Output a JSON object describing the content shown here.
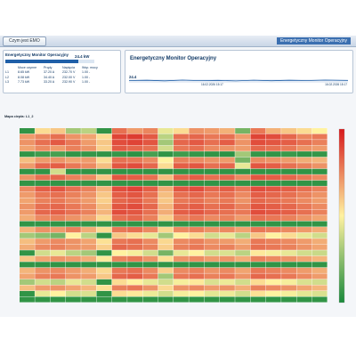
{
  "app": {
    "tab_label": "Czym jest EMO",
    "header_title": "Energetyczny Monitor Operacyjny"
  },
  "summary": {
    "title": "Energetyczny Monitor Operacyjny",
    "total": "24.4 kW",
    "total_fraction": 0.82,
    "columns": [
      "",
      "Moce czynne",
      "Prądy",
      "Napięcia",
      "Wsp. mocy"
    ],
    "rows": [
      [
        "L1",
        "8.65 kW",
        "37.20 A",
        "232.70 V",
        "1.00 -"
      ],
      [
        "L2",
        "8.08 kW",
        "34.40 A",
        "232.00 V",
        "1.00 -"
      ],
      [
        "L3",
        "7.73 kW",
        "33.20 A",
        "232.90 V",
        "1.00 -"
      ]
    ]
  },
  "trend": {
    "title": "Energetyczny Monitor Operacyjny",
    "current_value": "24.4",
    "time_start": "16.02.2026 15:17",
    "time_end": "16.02.2026 15:17"
  },
  "heatmap_title": "Mapa ciepła: L1_2",
  "chart_data": {
    "type": "heatmap",
    "title": "Mapa ciepła: L1_2",
    "rows": 30,
    "columns": 20,
    "colormap": [
      "#1a8a3c",
      "#fff2a0",
      "#d7191c"
    ],
    "colorbar_range": [
      0,
      1
    ],
    "values": [
      [
        0.05,
        0.55,
        0.6,
        0.3,
        0.35,
        0.05,
        0.8,
        0.7,
        0.75,
        0.45,
        0.55,
        0.72,
        0.7,
        0.65,
        0.2,
        0.78,
        0.65,
        0.6,
        0.55,
        0.5
      ],
      [
        0.7,
        0.75,
        0.8,
        0.72,
        0.68,
        0.55,
        0.9,
        0.92,
        0.85,
        0.35,
        0.8,
        0.82,
        0.78,
        0.8,
        0.7,
        0.9,
        0.88,
        0.82,
        0.75,
        0.78
      ],
      [
        0.72,
        0.8,
        0.85,
        0.78,
        0.7,
        0.6,
        0.88,
        0.9,
        0.86,
        0.3,
        0.82,
        0.85,
        0.8,
        0.84,
        0.72,
        0.88,
        0.86,
        0.84,
        0.8,
        0.76
      ],
      [
        0.68,
        0.74,
        0.7,
        0.76,
        0.72,
        0.58,
        0.85,
        0.82,
        0.8,
        0.4,
        0.78,
        0.8,
        0.74,
        0.72,
        0.7,
        0.82,
        0.8,
        0.78,
        0.72,
        0.7
      ],
      [
        0.05,
        0.08,
        0.1,
        0.05,
        0.06,
        0.05,
        0.06,
        0.04,
        0.1,
        0.05,
        0.08,
        0.06,
        0.05,
        0.04,
        0.3,
        0.06,
        0.05,
        0.07,
        0.05,
        0.06
      ],
      [
        0.62,
        0.7,
        0.72,
        0.68,
        0.7,
        0.55,
        0.8,
        0.78,
        0.74,
        0.5,
        0.76,
        0.74,
        0.72,
        0.7,
        0.2,
        0.74,
        0.72,
        0.7,
        0.66,
        0.64
      ],
      [
        0.7,
        0.82,
        0.84,
        0.78,
        0.74,
        0.62,
        0.86,
        0.88,
        0.82,
        0.55,
        0.84,
        0.86,
        0.8,
        0.82,
        0.45,
        0.86,
        0.84,
        0.8,
        0.76,
        0.72
      ],
      [
        0.05,
        0.05,
        0.4,
        0.05,
        0.05,
        0.05,
        0.05,
        0.05,
        0.05,
        0.05,
        0.05,
        0.05,
        0.05,
        0.05,
        0.05,
        0.05,
        0.05,
        0.05,
        0.05,
        0.05
      ],
      [
        0.72,
        0.8,
        0.82,
        0.76,
        0.74,
        0.6,
        0.86,
        0.84,
        0.8,
        0.62,
        0.82,
        0.84,
        0.8,
        0.82,
        0.74,
        0.86,
        0.84,
        0.82,
        0.78,
        0.74
      ],
      [
        0.05,
        0.05,
        0.05,
        0.05,
        0.05,
        0.05,
        0.05,
        0.05,
        0.05,
        0.05,
        0.05,
        0.05,
        0.05,
        0.05,
        0.05,
        0.05,
        0.05,
        0.05,
        0.05,
        0.05
      ],
      [
        0.74,
        0.84,
        0.86,
        0.8,
        0.76,
        0.64,
        0.88,
        0.9,
        0.84,
        0.66,
        0.86,
        0.88,
        0.82,
        0.84,
        0.78,
        0.88,
        0.86,
        0.84,
        0.8,
        0.76
      ],
      [
        0.7,
        0.78,
        0.8,
        0.76,
        0.72,
        0.6,
        0.84,
        0.86,
        0.8,
        0.62,
        0.8,
        0.82,
        0.78,
        0.8,
        0.74,
        0.84,
        0.82,
        0.8,
        0.76,
        0.72
      ],
      [
        0.68,
        0.76,
        0.78,
        0.74,
        0.7,
        0.58,
        0.82,
        0.84,
        0.78,
        0.6,
        0.78,
        0.8,
        0.76,
        0.78,
        0.72,
        0.82,
        0.8,
        0.78,
        0.74,
        0.7
      ],
      [
        0.72,
        0.8,
        0.82,
        0.78,
        0.74,
        0.62,
        0.86,
        0.88,
        0.82,
        0.64,
        0.82,
        0.84,
        0.8,
        0.82,
        0.76,
        0.86,
        0.84,
        0.82,
        0.78,
        0.74
      ],
      [
        0.7,
        0.82,
        0.84,
        0.8,
        0.76,
        0.64,
        0.88,
        0.86,
        0.8,
        0.66,
        0.84,
        0.86,
        0.82,
        0.8,
        0.78,
        0.88,
        0.86,
        0.84,
        0.8,
        0.76
      ],
      [
        0.66,
        0.74,
        0.76,
        0.72,
        0.68,
        0.56,
        0.8,
        0.82,
        0.76,
        0.58,
        0.76,
        0.78,
        0.74,
        0.76,
        0.7,
        0.8,
        0.78,
        0.76,
        0.72,
        0.68
      ],
      [
        0.05,
        0.05,
        0.05,
        0.05,
        0.05,
        0.05,
        0.05,
        0.05,
        0.05,
        0.05,
        0.05,
        0.05,
        0.05,
        0.05,
        0.05,
        0.05,
        0.05,
        0.05,
        0.05,
        0.05
      ],
      [
        0.64,
        0.72,
        0.7,
        0.76,
        0.66,
        0.55,
        0.78,
        0.8,
        0.74,
        0.56,
        0.74,
        0.76,
        0.72,
        0.74,
        0.68,
        0.78,
        0.76,
        0.74,
        0.7,
        0.66
      ],
      [
        0.3,
        0.25,
        0.2,
        0.5,
        0.35,
        0.05,
        0.6,
        0.55,
        0.45,
        0.3,
        0.5,
        0.55,
        0.4,
        0.45,
        0.35,
        0.6,
        0.5,
        0.55,
        0.45,
        0.4
      ],
      [
        0.62,
        0.7,
        0.74,
        0.72,
        0.68,
        0.54,
        0.78,
        0.8,
        0.74,
        0.56,
        0.74,
        0.76,
        0.72,
        0.7,
        0.66,
        0.78,
        0.76,
        0.74,
        0.7,
        0.66
      ],
      [
        0.66,
        0.74,
        0.76,
        0.72,
        0.7,
        0.58,
        0.82,
        0.8,
        0.76,
        0.58,
        0.76,
        0.78,
        0.74,
        0.76,
        0.7,
        0.8,
        0.78,
        0.76,
        0.72,
        0.68
      ],
      [
        0.05,
        0.4,
        0.45,
        0.35,
        0.3,
        0.05,
        0.5,
        0.48,
        0.4,
        0.2,
        0.45,
        0.5,
        0.4,
        0.42,
        0.35,
        0.52,
        0.48,
        0.45,
        0.4,
        0.38
      ],
      [
        0.6,
        0.68,
        0.72,
        0.7,
        0.66,
        0.52,
        0.76,
        0.78,
        0.72,
        0.54,
        0.72,
        0.74,
        0.7,
        0.72,
        0.66,
        0.76,
        0.74,
        0.72,
        0.68,
        0.64
      ],
      [
        0.05,
        0.05,
        0.05,
        0.05,
        0.05,
        0.05,
        0.05,
        0.05,
        0.05,
        0.05,
        0.05,
        0.05,
        0.05,
        0.05,
        0.05,
        0.05,
        0.05,
        0.05,
        0.05,
        0.05
      ],
      [
        0.64,
        0.72,
        0.74,
        0.7,
        0.66,
        0.56,
        0.78,
        0.8,
        0.74,
        0.58,
        0.74,
        0.76,
        0.72,
        0.74,
        0.68,
        0.78,
        0.76,
        0.74,
        0.7,
        0.66
      ],
      [
        0.68,
        0.76,
        0.78,
        0.72,
        0.7,
        0.6,
        0.82,
        0.84,
        0.78,
        0.3,
        0.78,
        0.8,
        0.76,
        0.78,
        0.72,
        0.82,
        0.8,
        0.78,
        0.74,
        0.7
      ],
      [
        0.3,
        0.4,
        0.35,
        0.45,
        0.4,
        0.05,
        0.55,
        0.5,
        0.45,
        0.4,
        0.48,
        0.52,
        0.42,
        0.46,
        0.4,
        0.55,
        0.5,
        0.48,
        0.42,
        0.4
      ],
      [
        0.62,
        0.7,
        0.72,
        0.68,
        0.64,
        0.54,
        0.76,
        0.78,
        0.72,
        0.56,
        0.72,
        0.74,
        0.7,
        0.72,
        0.66,
        0.76,
        0.74,
        0.72,
        0.68,
        0.64
      ],
      [
        0.05,
        0.45,
        0.5,
        0.4,
        0.42,
        0.05,
        0.55,
        0.52,
        0.46,
        0.4,
        0.48,
        0.5,
        0.44,
        0.46,
        0.4,
        0.54,
        0.5,
        0.48,
        0.44,
        0.42
      ],
      [
        0.05,
        0.05,
        0.05,
        0.05,
        0.05,
        0.05,
        0.05,
        0.05,
        0.05,
        0.05,
        0.05,
        0.05,
        0.05,
        0.05,
        0.05,
        0.05,
        0.05,
        0.05,
        0.05,
        0.05
      ]
    ]
  }
}
